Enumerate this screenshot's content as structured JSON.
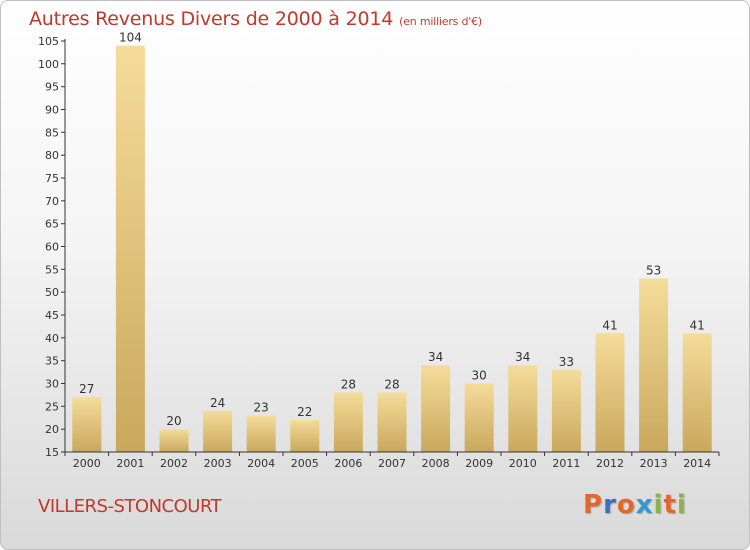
{
  "page": {
    "title": "Autres Revenus Divers de 2000 à 2014",
    "subtitle": "(en milliers d'€)",
    "place": "VILLERS-STONCOURT",
    "logo": "Proxiti"
  },
  "colors": {
    "title": "#c0392b",
    "bar_light": "#f5dc9a",
    "bar_dark": "#c9a85c",
    "logo_letters": [
      "#e2682a",
      "#3d6fc1",
      "#e2682a",
      "#2f9ad6",
      "#8ab63f",
      "#e2682a",
      "#8ab63f"
    ]
  },
  "chart_data": {
    "type": "bar",
    "categories": [
      "2000",
      "2001",
      "2002",
      "2003",
      "2004",
      "2005",
      "2006",
      "2007",
      "2008",
      "2009",
      "2010",
      "2011",
      "2012",
      "2013",
      "2014"
    ],
    "values": [
      27,
      104,
      20,
      24,
      23,
      22,
      28,
      28,
      34,
      30,
      34,
      33,
      41,
      53,
      41
    ],
    "title": "Autres Revenus Divers de 2000 à 2014",
    "subtitle": "(en milliers d'€)",
    "ylim": [
      15,
      105
    ],
    "yticks": [
      15,
      20,
      25,
      30,
      35,
      40,
      45,
      50,
      55,
      60,
      65,
      70,
      75,
      80,
      85,
      90,
      95,
      100,
      105
    ],
    "grid": false,
    "legend": "none"
  }
}
